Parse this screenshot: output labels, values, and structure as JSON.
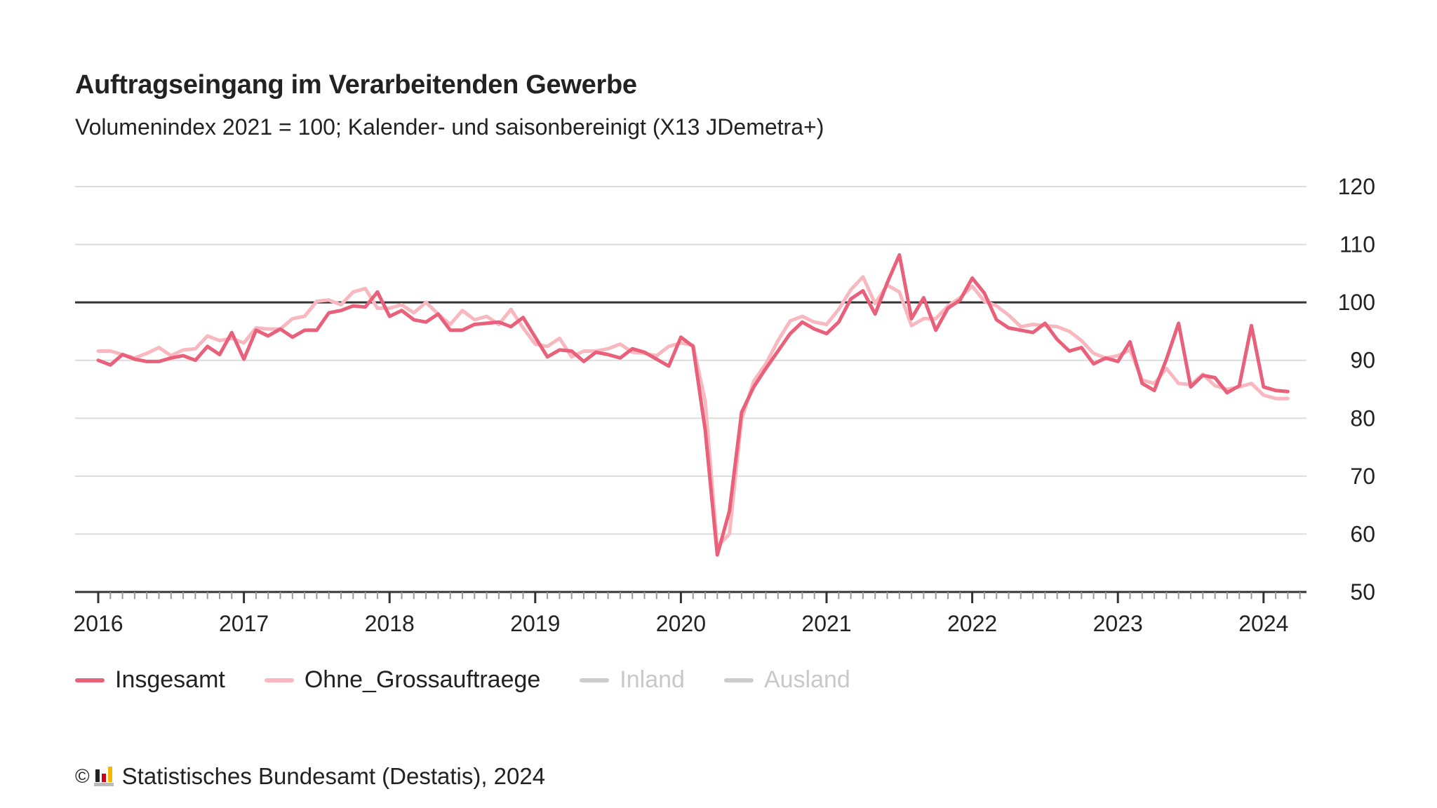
{
  "header": {
    "title": "Auftragseingang im Verarbeitenden Gewerbe",
    "subtitle": "Volumenindex 2021 = 100; Kalender- und saisonbereinigt (X13 JDemetra+)"
  },
  "legend": [
    {
      "label": "Insgesamt",
      "color": "#e8607a",
      "active": true
    },
    {
      "label": "Ohne_Grossauftraege",
      "color": "#f9b8bf",
      "active": true
    },
    {
      "label": "Inland",
      "color": "#cccccc",
      "active": false
    },
    {
      "label": "Ausland",
      "color": "#cccccc",
      "active": false
    }
  ],
  "footer": {
    "copyright": "©",
    "source": "Statistisches Bundesamt (Destatis), 2024"
  },
  "chart_data": {
    "type": "line",
    "title": "Auftragseingang im Verarbeitenden Gewerbe",
    "subtitle": "Volumenindex 2021 = 100; Kalender- und saisonbereinigt (X13 JDemetra+)",
    "xlabel": "",
    "ylabel": "",
    "x_start": "2016-01",
    "x_frequency": "monthly",
    "x_ticks": [
      "2016",
      "2017",
      "2018",
      "2019",
      "2020",
      "2021",
      "2022",
      "2023",
      "2024"
    ],
    "y_ticks": [
      50,
      60,
      70,
      80,
      90,
      100,
      110,
      120
    ],
    "ylim": [
      50,
      120
    ],
    "reference_line": 100,
    "grid": true,
    "y_axis_position": "right",
    "legend_position": "bottom-left",
    "series": [
      {
        "name": "Insgesamt",
        "color": "#e8607a",
        "values": [
          90.0,
          89.2,
          91.0,
          90.2,
          89.8,
          89.8,
          90.4,
          90.8,
          90.0,
          92.4,
          91.0,
          94.8,
          90.2,
          95.2,
          94.2,
          95.4,
          94.0,
          95.2,
          95.2,
          98.2,
          98.6,
          99.4,
          99.2,
          101.8,
          97.6,
          98.6,
          97.0,
          96.6,
          98.0,
          95.2,
          95.2,
          96.2,
          96.4,
          96.6,
          95.8,
          97.4,
          94.0,
          90.6,
          91.8,
          91.6,
          89.8,
          91.4,
          91.0,
          90.4,
          92.0,
          91.4,
          90.2,
          89.0,
          94.0,
          92.4,
          78.0,
          56.4,
          64.0,
          81.0,
          85.4,
          88.6,
          91.6,
          94.6,
          96.6,
          95.4,
          94.6,
          96.6,
          100.6,
          102.0,
          98.0,
          103.4,
          108.2,
          97.2,
          100.8,
          95.2,
          99.0,
          100.4,
          104.2,
          101.6,
          97.0,
          95.6,
          95.2,
          94.8,
          96.4,
          93.6,
          91.6,
          92.2,
          89.4,
          90.4,
          89.8,
          93.2,
          86.0,
          84.8,
          90.2,
          96.4,
          85.4,
          87.4,
          87.0,
          84.4,
          85.6,
          96.0,
          85.4,
          84.8,
          84.6
        ]
      },
      {
        "name": "Ohne_Grossauftraege",
        "color": "#f9b8bf",
        "values": [
          91.6,
          91.6,
          91.0,
          90.4,
          91.2,
          92.2,
          90.8,
          91.8,
          92.0,
          94.2,
          93.4,
          93.8,
          93.0,
          95.6,
          95.4,
          95.4,
          97.2,
          97.6,
          100.2,
          100.4,
          99.6,
          101.8,
          102.4,
          99.0,
          99.0,
          99.6,
          98.2,
          100.0,
          98.0,
          96.2,
          98.6,
          97.0,
          97.6,
          96.2,
          98.8,
          95.6,
          92.8,
          92.4,
          93.8,
          90.6,
          91.6,
          91.6,
          92.0,
          92.8,
          91.4,
          91.2,
          90.8,
          92.4,
          93.0,
          92.6,
          83.0,
          57.8,
          60.0,
          79.8,
          86.4,
          89.4,
          93.4,
          96.8,
          97.6,
          96.6,
          96.2,
          98.8,
          102.2,
          104.4,
          99.8,
          103.0,
          101.8,
          96.0,
          97.2,
          97.2,
          99.4,
          100.8,
          102.8,
          100.2,
          99.4,
          97.8,
          95.8,
          96.2,
          96.0,
          95.8,
          95.0,
          93.4,
          91.2,
          90.4,
          90.8,
          91.8,
          86.6,
          86.0,
          88.6,
          86.0,
          85.8,
          87.6,
          85.6,
          85.0,
          85.4,
          86.0,
          84.0,
          83.4,
          83.4
        ]
      },
      {
        "name": "Inland",
        "color": "#cccccc",
        "hidden": true,
        "values": []
      },
      {
        "name": "Ausland",
        "color": "#cccccc",
        "hidden": true,
        "values": []
      }
    ]
  }
}
